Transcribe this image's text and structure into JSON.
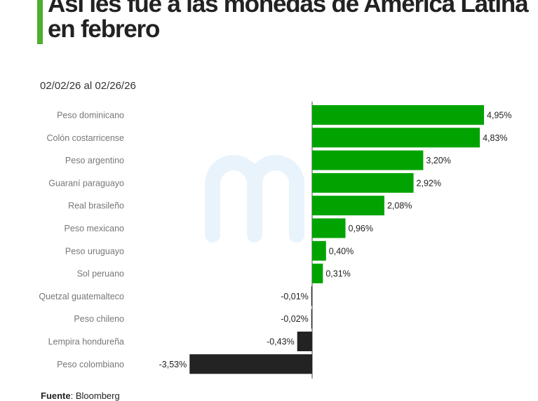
{
  "title": "Así les fue a las monedas de América Latina en febrero",
  "subtitle": "02/02/26 al 02/26/26",
  "source": {
    "label": "Fuente",
    "value": ": Bloomberg"
  },
  "colors": {
    "positive": "#00a300",
    "negative": "#232323",
    "accent": "#4caf2e"
  },
  "chart_data": {
    "type": "bar",
    "orientation": "horizontal",
    "categories": [
      "Peso dominicano",
      "Colón costarricense",
      "Peso argentino",
      "Guaraní paraguayo",
      "Real brasileño",
      "Peso mexicano",
      "Peso uruguayo",
      "Sol peruano",
      "Quetzal guatemalteco",
      "Peso chileno",
      "Lempira hondureña",
      "Peso colombiano"
    ],
    "values": [
      4.95,
      4.83,
      3.2,
      2.92,
      2.08,
      0.96,
      0.4,
      0.31,
      -0.01,
      -0.02,
      -0.43,
      -3.53
    ],
    "data_labels": [
      "4,95%",
      "4,83%",
      "3,20%",
      "2,92%",
      "2,08%",
      "0,96%",
      "0,40%",
      "0,31%",
      "-0,01%",
      "-0,02%",
      "-0,43%",
      "-3,53%"
    ],
    "xlim": [
      -3.53,
      4.95
    ]
  }
}
